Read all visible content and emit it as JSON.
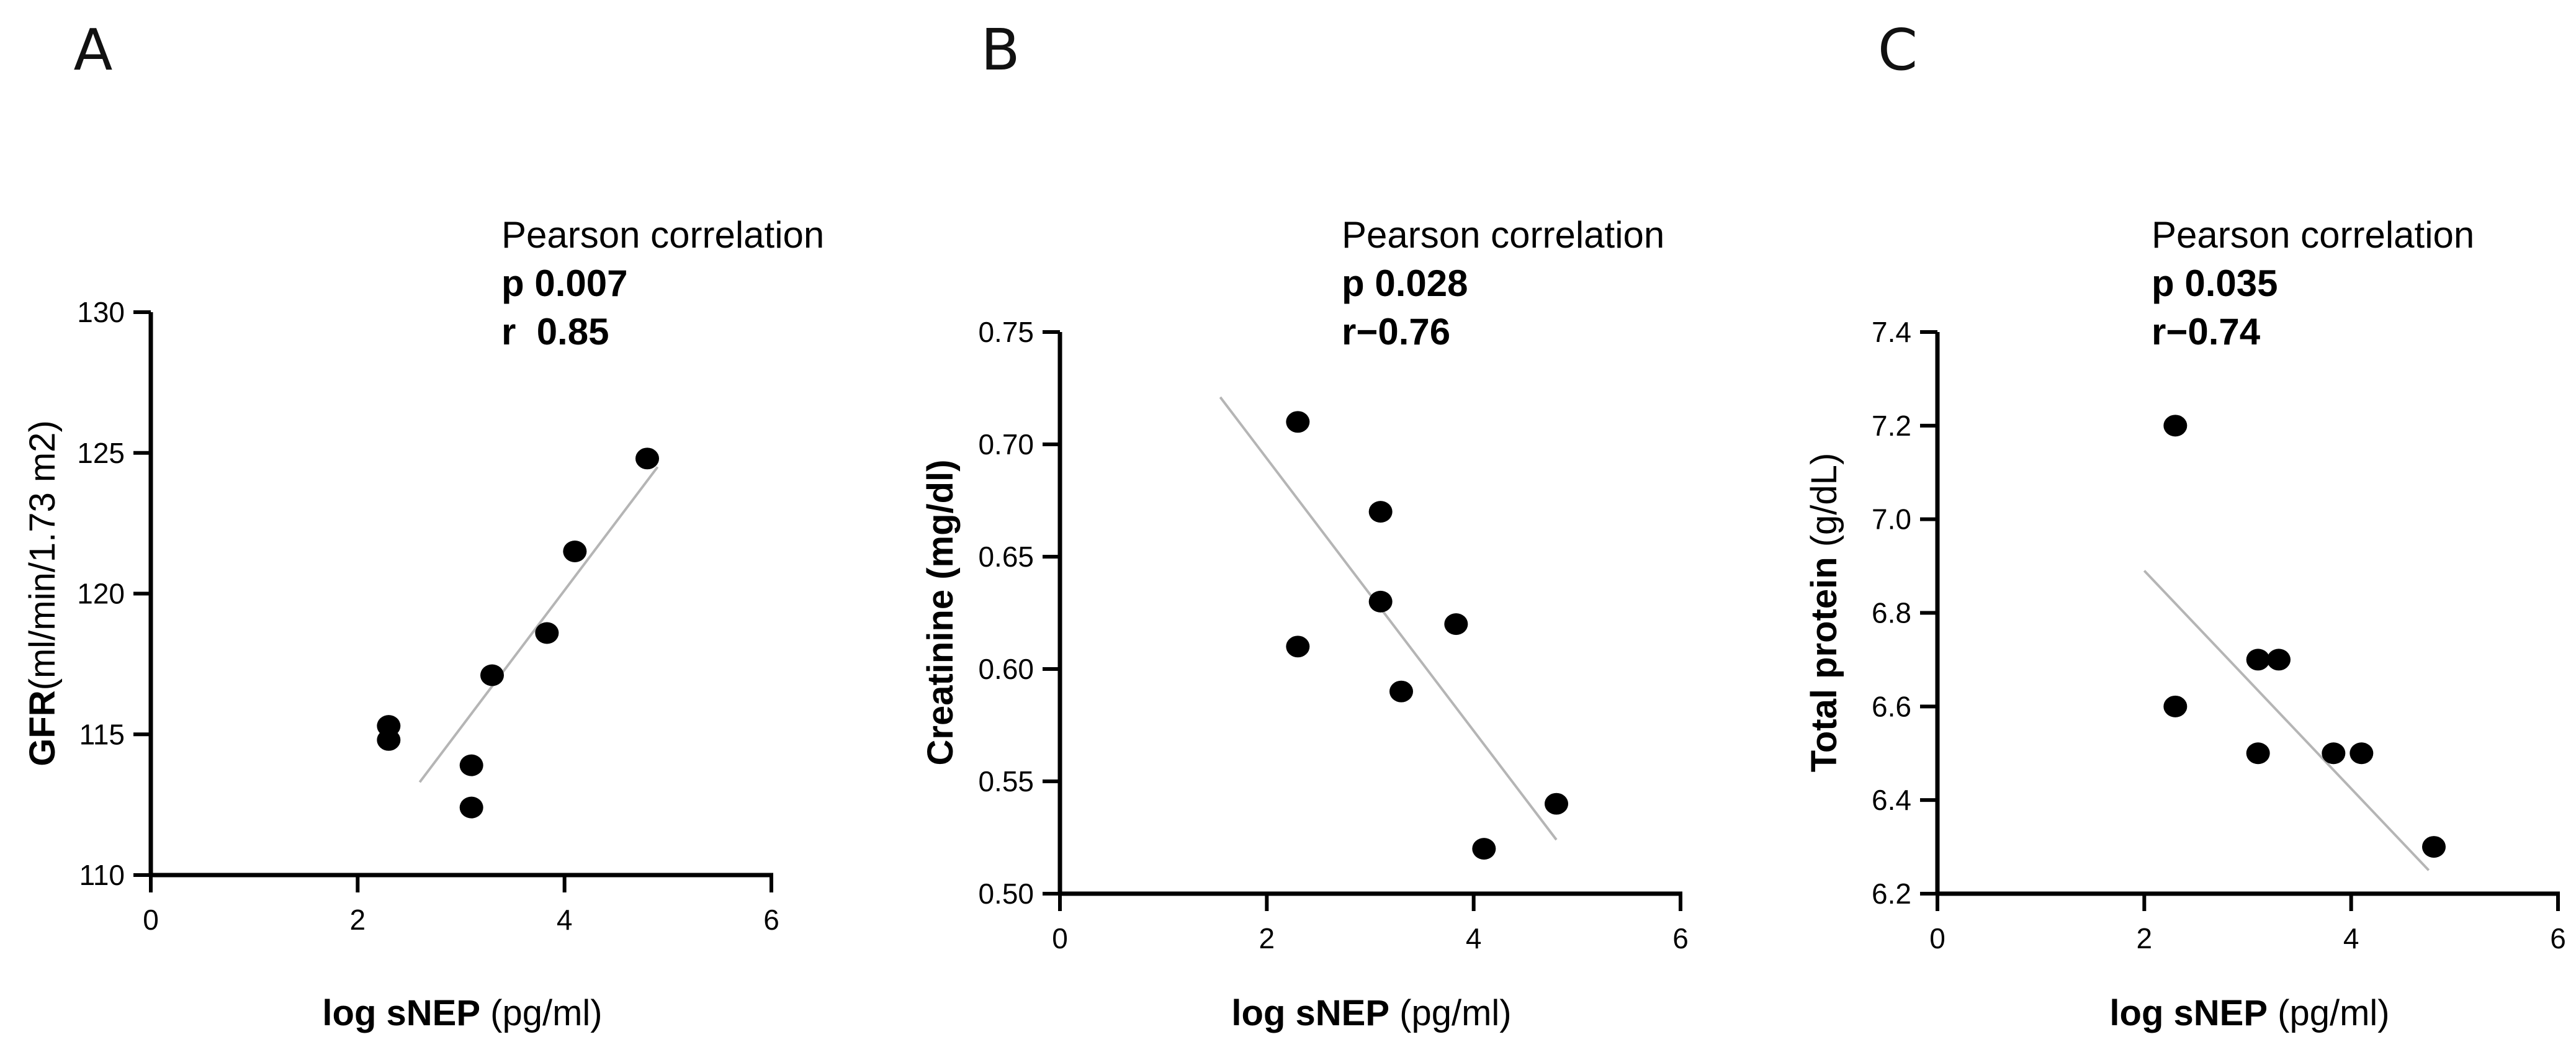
{
  "chart_data": [
    {
      "panel": "A",
      "type": "scatter",
      "title": "",
      "stats": {
        "title": "Pearson correlation",
        "p": "p 0.007",
        "r": "r  0.85"
      },
      "xlabel": {
        "bold": "log sNEP",
        "regular": " (pg/ml)"
      },
      "ylabel": {
        "bold": "GFR",
        "regular": "(ml/min/1.73 m2)"
      },
      "xlim": [
        0,
        6
      ],
      "ylim": [
        110,
        130
      ],
      "xticks": [
        0,
        2,
        4,
        6
      ],
      "yticks": [
        110,
        115,
        120,
        125,
        130
      ],
      "points": [
        {
          "x": 2.3,
          "y": 115.3
        },
        {
          "x": 2.3,
          "y": 114.8
        },
        {
          "x": 3.1,
          "y": 113.9
        },
        {
          "x": 3.1,
          "y": 112.4
        },
        {
          "x": 3.3,
          "y": 117.1
        },
        {
          "x": 3.83,
          "y": 118.6
        },
        {
          "x": 4.1,
          "y": 121.5
        },
        {
          "x": 4.8,
          "y": 124.8
        }
      ],
      "fit_line": {
        "x": [
          2.6,
          4.9
        ],
        "y": [
          113.3,
          124.5
        ]
      }
    },
    {
      "panel": "B",
      "type": "scatter",
      "title": "",
      "stats": {
        "title": "Pearson correlation",
        "p": "p 0.028",
        "r": "r−0.76"
      },
      "xlabel": {
        "bold": "log sNEP",
        "regular": " (pg/ml)"
      },
      "ylabel": {
        "bold": "Creatinine (mg/dl)",
        "regular": ""
      },
      "xlim": [
        0,
        6
      ],
      "ylim": [
        0.5,
        0.75
      ],
      "xticks": [
        0,
        2,
        4,
        6
      ],
      "yticks": [
        0.5,
        0.55,
        0.6,
        0.65,
        0.7,
        0.75
      ],
      "yticks_text": [
        "0.50",
        "0.55",
        "0.60",
        "0.65",
        "0.70",
        "0.75"
      ],
      "points": [
        {
          "x": 2.3,
          "y": 0.71
        },
        {
          "x": 2.3,
          "y": 0.61
        },
        {
          "x": 3.1,
          "y": 0.67
        },
        {
          "x": 3.1,
          "y": 0.63
        },
        {
          "x": 3.3,
          "y": 0.59
        },
        {
          "x": 3.83,
          "y": 0.62
        },
        {
          "x": 4.1,
          "y": 0.52
        },
        {
          "x": 4.8,
          "y": 0.54
        }
      ],
      "fit_line": {
        "x": [
          1.55,
          4.8
        ],
        "y": [
          0.721,
          0.524
        ]
      }
    },
    {
      "panel": "C",
      "type": "scatter",
      "title": "",
      "stats": {
        "title": "Pearson correlation",
        "p": "p 0.035",
        "r": "r−0.74"
      },
      "xlabel": {
        "bold": "log sNEP",
        "regular": " (pg/ml)"
      },
      "ylabel": {
        "bold": "Total protein",
        "regular": " (g/dL)"
      },
      "xlim": [
        0,
        6
      ],
      "ylim": [
        6.2,
        7.4
      ],
      "xticks": [
        0,
        2,
        4,
        6
      ],
      "yticks": [
        6.2,
        6.4,
        6.6,
        6.8,
        7.0,
        7.2,
        7.4
      ],
      "yticks_text": [
        "6.2",
        "6.4",
        "6.6",
        "6.8",
        "7.0",
        "7.2",
        "7.4"
      ],
      "points": [
        {
          "x": 2.3,
          "y": 7.2
        },
        {
          "x": 2.3,
          "y": 6.6
        },
        {
          "x": 3.1,
          "y": 6.7
        },
        {
          "x": 3.3,
          "y": 6.7
        },
        {
          "x": 3.1,
          "y": 6.5
        },
        {
          "x": 3.83,
          "y": 6.5
        },
        {
          "x": 4.1,
          "y": 6.5
        },
        {
          "x": 4.8,
          "y": 6.3
        }
      ],
      "fit_line": {
        "x": [
          2.0,
          4.75
        ],
        "y": [
          6.89,
          6.25
        ]
      }
    }
  ]
}
